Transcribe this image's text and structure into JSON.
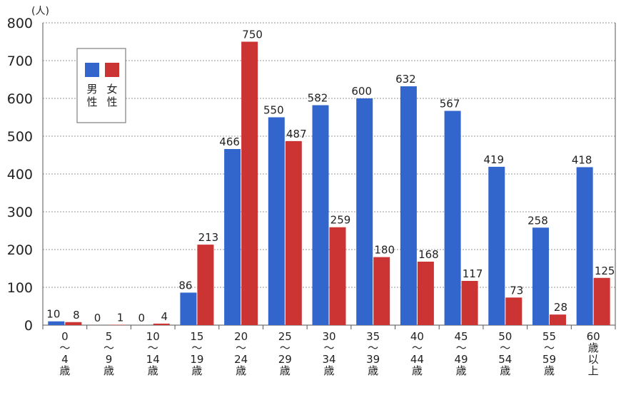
{
  "chart_data": {
    "type": "bar",
    "unit_label": "(人)",
    "ylim": [
      0,
      800
    ],
    "yticks": [
      "0",
      "100",
      "200",
      "300",
      "400",
      "500",
      "600",
      "700",
      "800"
    ],
    "grid": true,
    "legend_position": "top-left",
    "categories": [
      [
        "0",
        "～",
        "4",
        "歳"
      ],
      [
        "5",
        "～",
        "9",
        "歳"
      ],
      [
        "10",
        "～",
        "14",
        "歳"
      ],
      [
        "15",
        "～",
        "19",
        "歳"
      ],
      [
        "20",
        "～",
        "24",
        "歳"
      ],
      [
        "25",
        "～",
        "29",
        "歳"
      ],
      [
        "30",
        "～",
        "34",
        "歳"
      ],
      [
        "35",
        "～",
        "39",
        "歳"
      ],
      [
        "40",
        "～",
        "44",
        "歳"
      ],
      [
        "45",
        "～",
        "49",
        "歳"
      ],
      [
        "50",
        "～",
        "54",
        "歳"
      ],
      [
        "55",
        "～",
        "59",
        "歳"
      ],
      [
        "60",
        "歳",
        "以",
        "上"
      ]
    ],
    "series": [
      {
        "name": "男性",
        "name_chars": [
          "男",
          "性"
        ],
        "color": "#3366cc",
        "values": [
          10,
          0,
          0,
          86,
          466,
          550,
          582,
          600,
          632,
          567,
          419,
          258,
          418
        ]
      },
      {
        "name": "女性",
        "name_chars": [
          "女",
          "性"
        ],
        "color": "#cc3333",
        "values": [
          8,
          1,
          4,
          213,
          750,
          487,
          259,
          180,
          168,
          117,
          73,
          28,
          125
        ]
      }
    ]
  }
}
